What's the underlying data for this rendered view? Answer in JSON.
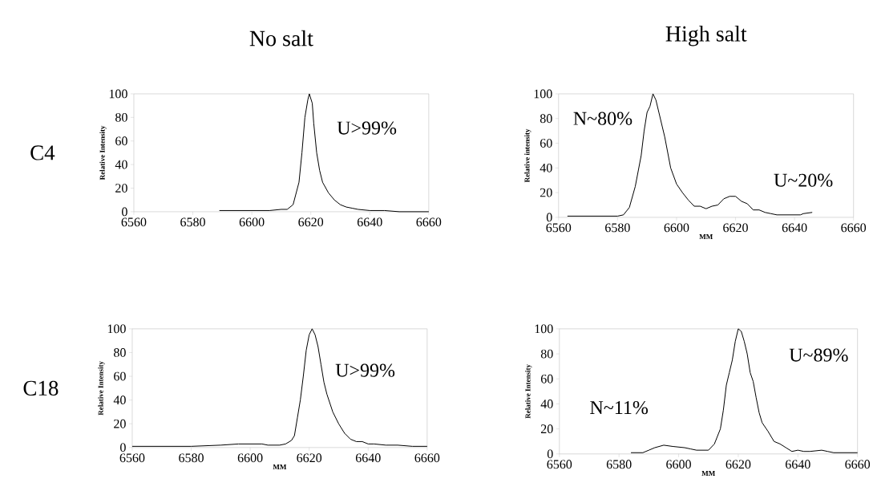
{
  "chart_data": [
    {
      "type": "line",
      "title": "No salt",
      "annotations": [
        "C4",
        "U>99%"
      ],
      "ylabel": "Relative Intensity",
      "xlim": [
        6560,
        6660
      ],
      "ylim": [
        0,
        100
      ],
      "xticks": [
        6560,
        6580,
        6600,
        6620,
        6640,
        6660
      ],
      "yticks": [
        0,
        20,
        40,
        60,
        80,
        100
      ],
      "series": [
        {
          "color": "#000000",
          "x": [
            6589,
            6592,
            6595,
            6598,
            6602,
            6606,
            6610,
            6612,
            6614,
            6616,
            6617,
            6618,
            6619,
            6619.5,
            6620.5,
            6621,
            6622,
            6623,
            6624,
            6626,
            6628,
            6630,
            6632,
            6634,
            6636,
            6640,
            6645,
            6650,
            6655,
            6660
          ],
          "values": [
            1,
            1,
            1,
            1,
            1,
            1,
            2,
            2,
            6,
            25,
            50,
            80,
            95,
            100,
            92,
            75,
            50,
            35,
            25,
            16,
            10,
            6,
            4,
            3,
            2,
            1,
            1,
            0,
            0,
            0
          ]
        }
      ]
    },
    {
      "type": "line",
      "title": "High salt",
      "annotations": [
        "N~80%",
        "U~20%"
      ],
      "xlabel": "MM",
      "ylabel": "Relative intensity",
      "xlim": [
        6560,
        6660
      ],
      "ylim": [
        0,
        100
      ],
      "xticks": [
        6560,
        6580,
        6600,
        6620,
        6640,
        6660
      ],
      "yticks": [
        0,
        20,
        40,
        60,
        80,
        100
      ],
      "series": [
        {
          "color": "#000000",
          "x": [
            6563,
            6570,
            6575,
            6580,
            6582,
            6584,
            6586,
            6588,
            6589,
            6590,
            6591,
            6592,
            6593,
            6594,
            6596,
            6598,
            6600,
            6602,
            6604,
            6606,
            6608,
            6610,
            6612,
            6614,
            6616,
            6618,
            6620,
            6622,
            6624,
            6626,
            6628,
            6630,
            6632,
            6634,
            6636,
            6638,
            6640,
            6642,
            6643,
            6646
          ],
          "values": [
            1,
            1,
            1,
            1,
            2,
            8,
            25,
            50,
            70,
            85,
            90,
            100,
            95,
            85,
            65,
            40,
            27,
            20,
            14,
            9,
            9,
            7,
            9,
            10,
            15,
            17,
            17,
            13,
            11,
            6,
            6,
            4,
            3,
            2,
            2,
            2,
            2,
            2,
            3,
            4
          ]
        }
      ]
    },
    {
      "type": "line",
      "annotations": [
        "C18",
        "U>99%"
      ],
      "xlabel": "MM",
      "ylabel": "Relative Intensity",
      "xlim": [
        6560,
        6660
      ],
      "ylim": [
        0,
        100
      ],
      "xticks": [
        6560,
        6580,
        6600,
        6620,
        6640,
        6660
      ],
      "yticks": [
        0,
        20,
        40,
        60,
        80,
        100
      ],
      "series": [
        {
          "color": "#000000",
          "x": [
            6560,
            6570,
            6580,
            6590,
            6596,
            6600,
            6604,
            6606,
            6610,
            6612,
            6614,
            6615,
            6616,
            6617,
            6618,
            6619,
            6620,
            6621,
            6622,
            6623,
            6624,
            6625,
            6626,
            6628,
            6630,
            6632,
            6634,
            6636,
            6638,
            6640,
            6642,
            6646,
            6650,
            6655,
            6660
          ],
          "values": [
            1,
            1,
            1,
            2,
            3,
            3,
            3,
            2,
            2,
            3,
            6,
            10,
            25,
            40,
            60,
            82,
            95,
            100,
            95,
            85,
            70,
            55,
            45,
            30,
            20,
            12,
            7,
            5,
            5,
            3,
            3,
            2,
            2,
            1,
            1
          ]
        }
      ]
    },
    {
      "type": "line",
      "annotations": [
        "N~11%",
        "U~89%"
      ],
      "xlabel": "MM",
      "ylabel": "Relative Intensity",
      "xlim": [
        6560,
        6660
      ],
      "ylim": [
        0,
        100
      ],
      "xticks": [
        6560,
        6580,
        6600,
        6620,
        6640,
        6660
      ],
      "yticks": [
        0,
        20,
        40,
        60,
        80,
        100
      ],
      "series": [
        {
          "color": "#000000",
          "x": [
            6584,
            6588,
            6590,
            6592,
            6595,
            6598,
            6602,
            6604,
            6606,
            6610,
            6612,
            6614,
            6615,
            6616,
            6617,
            6618,
            6619,
            6620,
            6621,
            6622,
            6623,
            6624,
            6625,
            6626,
            6627,
            6628,
            6630,
            6632,
            6634,
            6636,
            6638,
            6640,
            6642,
            6644,
            6648,
            6650,
            6652,
            6654,
            6658,
            6660
          ],
          "values": [
            1,
            1,
            3,
            5,
            7,
            6,
            5,
            4,
            3,
            3,
            8,
            20,
            35,
            55,
            65,
            75,
            90,
            100,
            98,
            90,
            80,
            65,
            58,
            45,
            33,
            25,
            18,
            10,
            8,
            5,
            2,
            3,
            2,
            2,
            3,
            2,
            1,
            1,
            1,
            1
          ]
        }
      ]
    }
  ]
}
